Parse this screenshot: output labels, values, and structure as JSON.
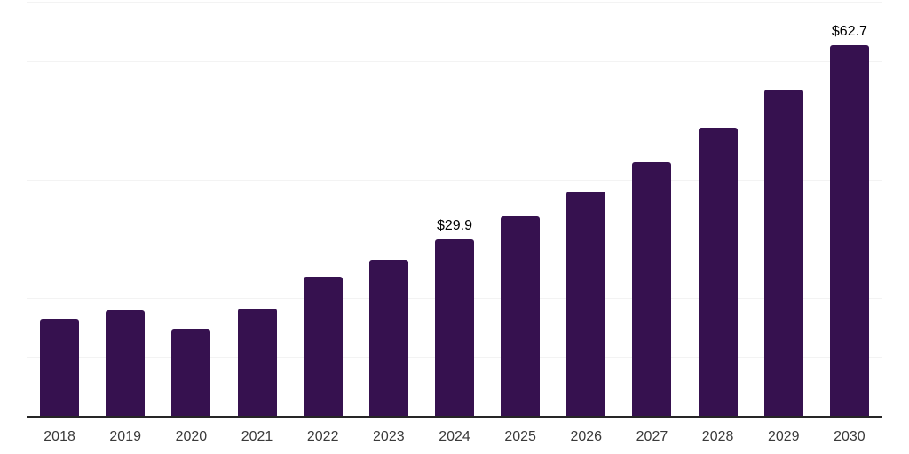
{
  "chart_data": {
    "type": "bar",
    "title": "",
    "xlabel": "",
    "ylabel": "",
    "categories": [
      "2018",
      "2019",
      "2020",
      "2021",
      "2022",
      "2023",
      "2024",
      "2025",
      "2026",
      "2027",
      "2028",
      "2029",
      "2030"
    ],
    "values": [
      16.5,
      18.0,
      14.8,
      18.2,
      23.7,
      26.5,
      29.9,
      33.8,
      38.0,
      42.9,
      48.7,
      55.2,
      62.7
    ],
    "data_labels": {
      "2024": "$29.9",
      "2030": "$62.7"
    },
    "ylim": [
      0,
      70
    ],
    "gridline_step": 10,
    "grid": true,
    "legend": "none",
    "colors": {
      "bar": "#36114F",
      "gridline": "#f3f3f3",
      "axis": "#262626",
      "tick_label": "#3a3a3a",
      "value_label": "#000000",
      "background": "#ffffff"
    }
  }
}
